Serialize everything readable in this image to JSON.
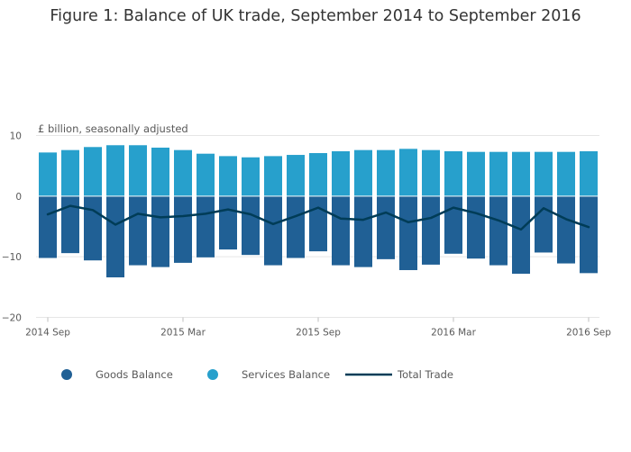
{
  "chart_data": {
    "type": "bar",
    "title": "Figure 1: Balance of UK trade, September 2014 to September 2016",
    "ylabel": "£ billion, seasonally adjusted",
    "xlabel": "",
    "ylim": [
      -20,
      10
    ],
    "y_ticks": [
      10,
      0,
      -10,
      -20
    ],
    "y_tick_labels": [
      "10",
      "0",
      "−10",
      "−20"
    ],
    "x_ticks": [
      {
        "index": 0,
        "label": "2014 Sep"
      },
      {
        "index": 6,
        "label": "2015 Mar"
      },
      {
        "index": 12,
        "label": "2015 Sep"
      },
      {
        "index": 18,
        "label": "2016 Mar"
      },
      {
        "index": 24,
        "label": "2016 Sep"
      }
    ],
    "categories": [
      "2014 Sep",
      "2014 Oct",
      "2014 Nov",
      "2014 Dec",
      "2015 Jan",
      "2015 Feb",
      "2015 Mar",
      "2015 Apr",
      "2015 May",
      "2015 Jun",
      "2015 Jul",
      "2015 Aug",
      "2015 Sep",
      "2015 Oct",
      "2015 Nov",
      "2015 Dec",
      "2016 Jan",
      "2016 Feb",
      "2016 Mar",
      "2016 Apr",
      "2016 May",
      "2016 Jun",
      "2016 Jul",
      "2016 Aug",
      "2016 Sep"
    ],
    "stacked": true,
    "grid": true,
    "legend_position": "bottom",
    "series": [
      {
        "name": "Goods Balance",
        "type": "bar",
        "color": "#206095",
        "values": [
          -10.2,
          -9.4,
          -10.6,
          -13.4,
          -11.4,
          -11.7,
          -11.0,
          -10.1,
          -8.8,
          -9.7,
          -11.4,
          -10.2,
          -9.1,
          -11.4,
          -11.7,
          -10.4,
          -12.2,
          -11.3,
          -9.5,
          -10.3,
          -11.4,
          -12.8,
          -9.3,
          -11.1,
          -12.7
        ]
      },
      {
        "name": "Services Balance",
        "type": "bar",
        "color": "#27a0cc",
        "values": [
          7.2,
          7.6,
          8.1,
          8.4,
          8.4,
          8.0,
          7.6,
          7.0,
          6.6,
          6.4,
          6.6,
          6.8,
          7.1,
          7.4,
          7.6,
          7.6,
          7.8,
          7.6,
          7.4,
          7.3,
          7.3,
          7.3,
          7.3,
          7.3,
          7.4
        ]
      },
      {
        "name": "Total Trade",
        "type": "line",
        "color": "#003c57",
        "values": [
          -3.0,
          -1.6,
          -2.3,
          -4.7,
          -2.9,
          -3.5,
          -3.3,
          -2.9,
          -2.2,
          -3.0,
          -4.6,
          -3.3,
          -1.9,
          -3.7,
          -3.9,
          -2.7,
          -4.3,
          -3.6,
          -1.9,
          -2.8,
          -4.0,
          -5.5,
          -2.0,
          -3.8,
          -5.1
        ]
      }
    ]
  }
}
